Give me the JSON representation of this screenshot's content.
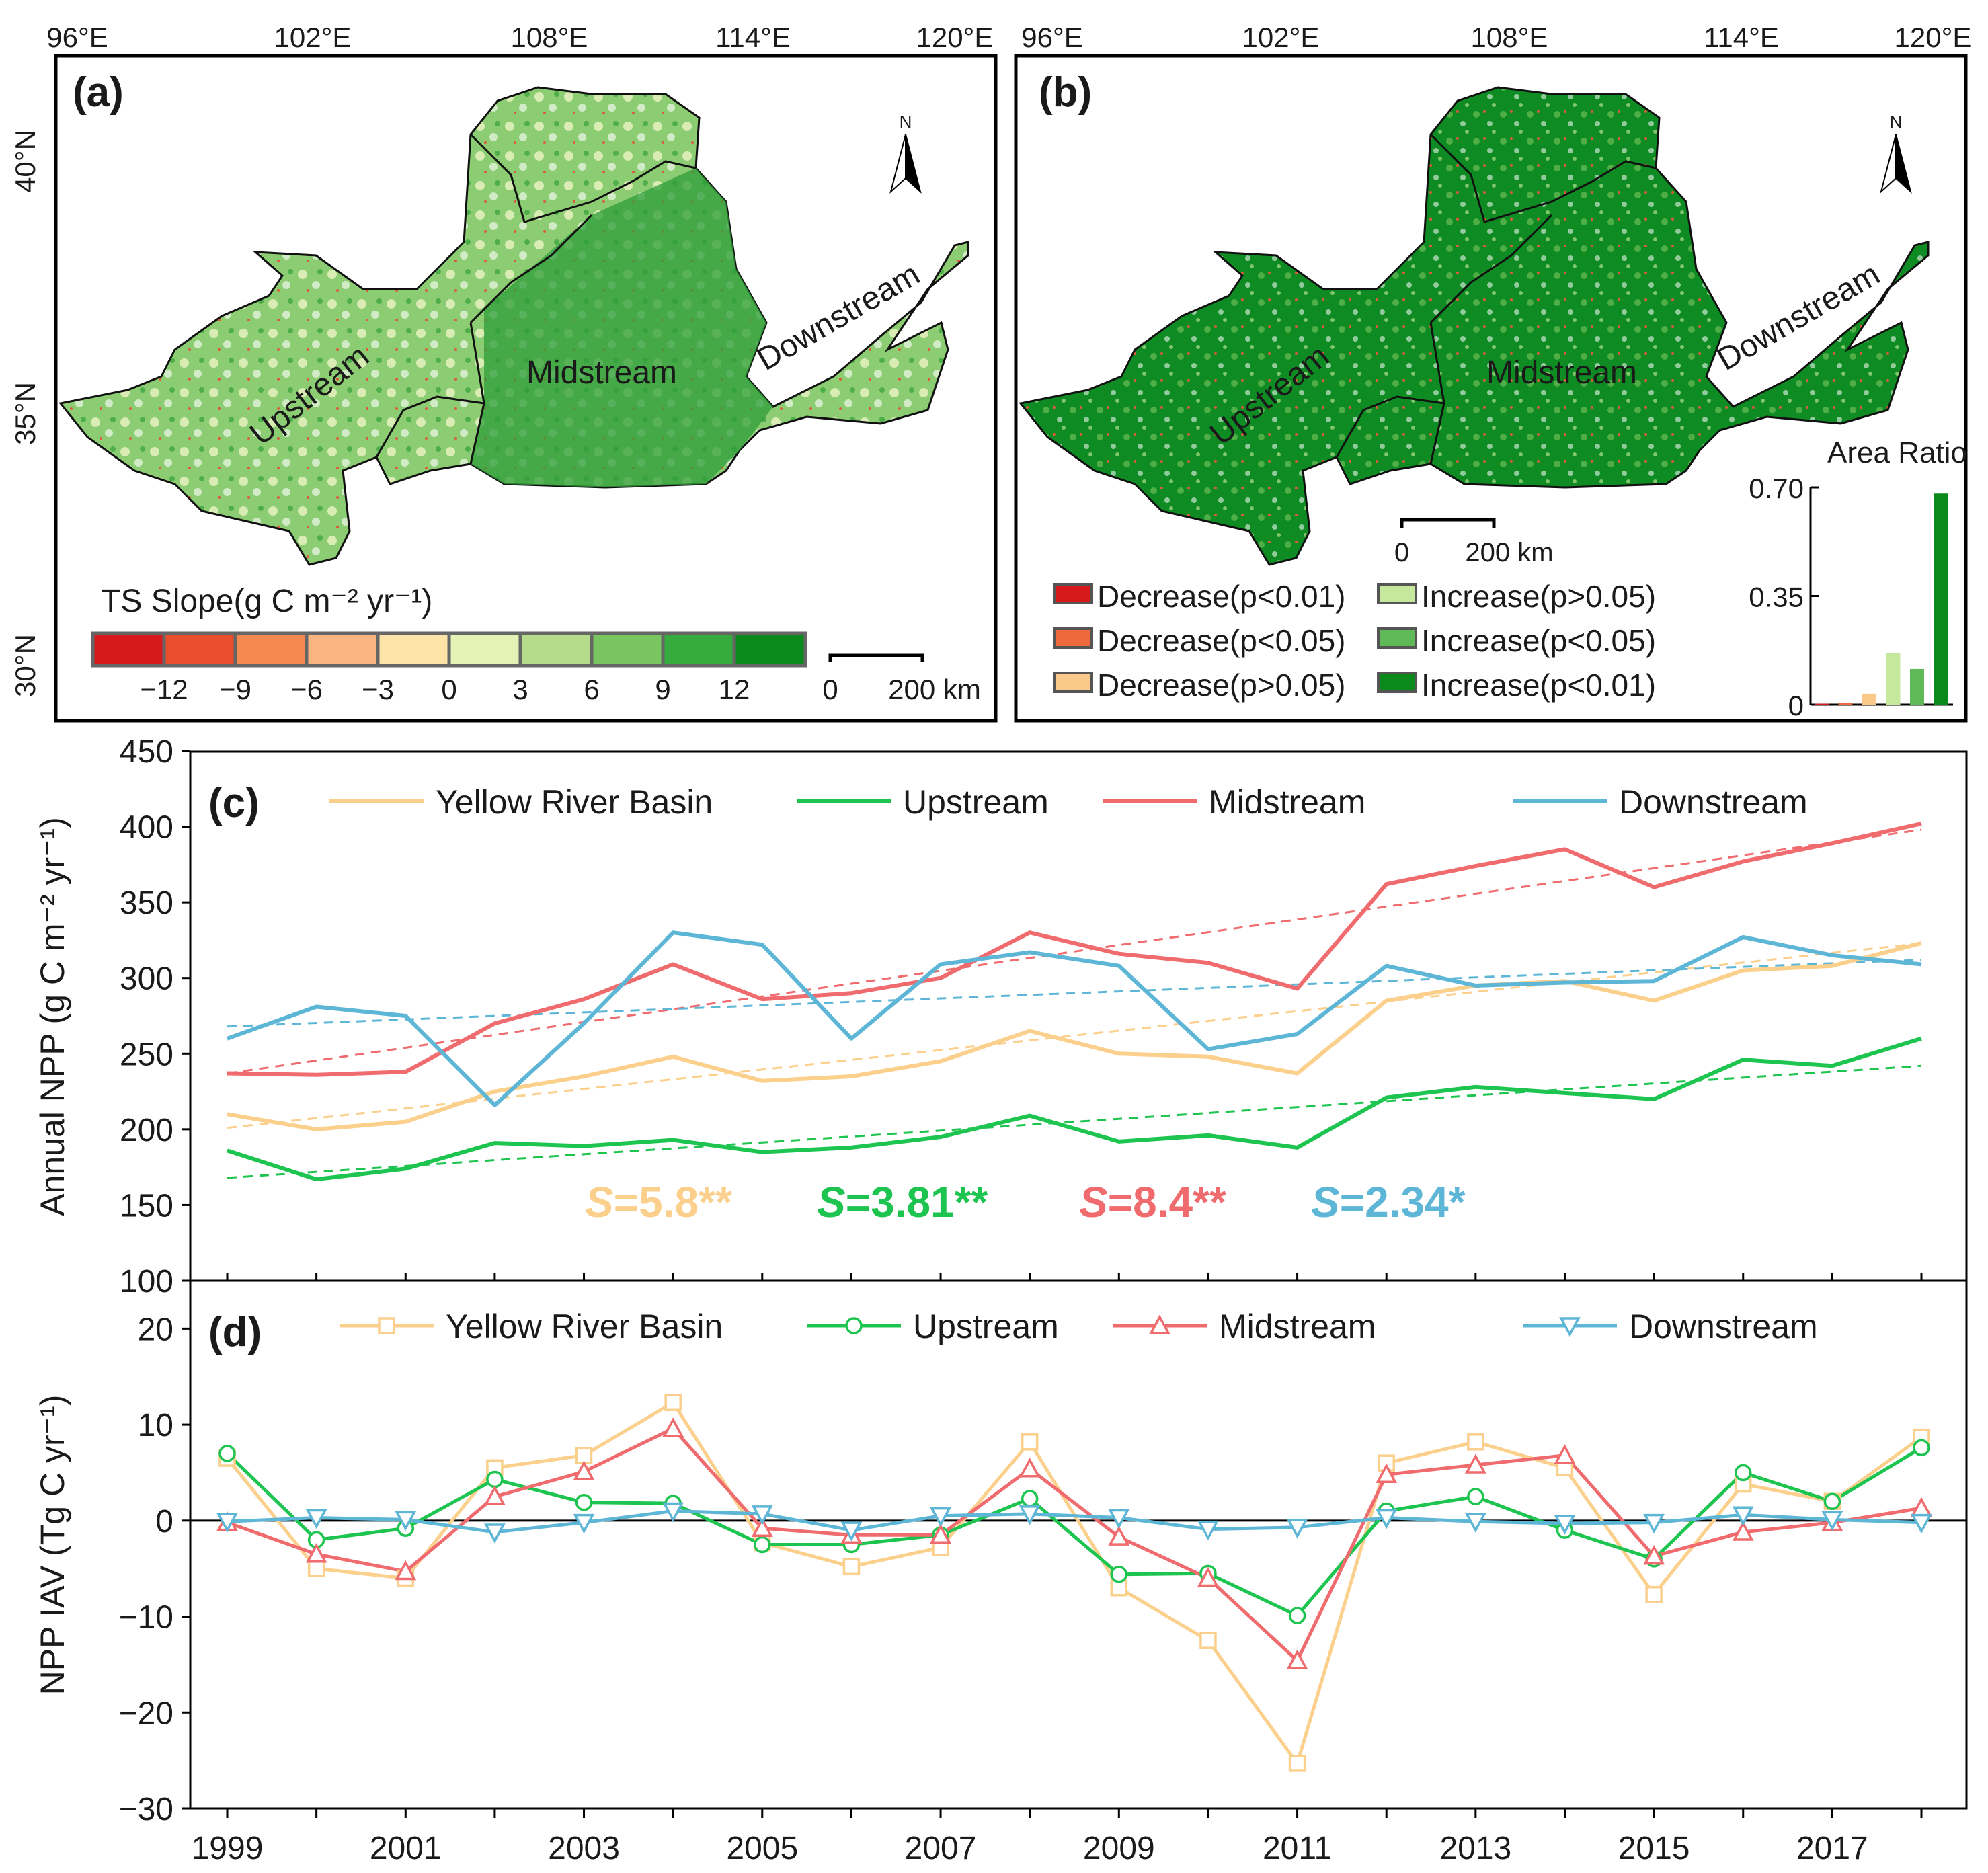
{
  "colors": {
    "basin": "#fbcf8c",
    "upstream": "#1dc44f",
    "midstream": "#ef6b6e",
    "downstream": "#5eb6d7",
    "map_green_dark": "#0b8a1c",
    "map_green_mid": "#3fa63a",
    "map_green_light": "#c8e4a6"
  },
  "map_panels": {
    "coords_top": [
      "96°E",
      "102°E",
      "108°E",
      "114°E",
      "120°E"
    ],
    "coords_left_a": [
      "40°N",
      "35°N",
      "30°N"
    ],
    "region_labels": {
      "upstream": "Upstream",
      "midstream": "Midstream",
      "downstream": "Downstream"
    },
    "north_label": "N",
    "panel_a": {
      "tag": "(a)",
      "colorbar_title": "TS Slope(g C m⁻² yr⁻¹)",
      "colorbar_colors": [
        "#d7191c",
        "#ea4e2d",
        "#f4894f",
        "#f9b482",
        "#fde3a8",
        "#e4f3b5",
        "#b4dc8a",
        "#79c560",
        "#37ac3e",
        "#0b8a1c"
      ],
      "colorbar_ticks": [
        "−12",
        "−9",
        "−6",
        "−3",
        "0",
        "3",
        "6",
        "9",
        "12"
      ],
      "scalebar_left": "0",
      "scalebar_right": "200 km"
    },
    "panel_b": {
      "tag": "(b)",
      "scalebar_left": "0",
      "scalebar_right": "200 km",
      "legend": [
        {
          "label": "Decrease(p<0.01)",
          "color": "#d7191c"
        },
        {
          "label": "Decrease(p<0.05)",
          "color": "#ee6a3c"
        },
        {
          "label": "Decrease(p>0.05)",
          "color": "#fbc989"
        },
        {
          "label": "Increase(p>0.05)",
          "color": "#c5e89c"
        },
        {
          "label": "Increase(p<0.05)",
          "color": "#5fb956"
        },
        {
          "label": "Increase(p<0.01)",
          "color": "#0b8a1c"
        }
      ]
    }
  },
  "chart_data": [
    {
      "id": "area_ratio",
      "type": "bar",
      "title": "Area Ratio",
      "categories": [
        "Decrease(p<0.01)",
        "Decrease(p<0.05)",
        "Decrease(p>0.05)",
        "Increase(p>0.05)",
        "Increase(p<0.05)",
        "Increase(p<0.01)"
      ],
      "values": [
        0.003,
        0.005,
        0.035,
        0.165,
        0.115,
        0.68
      ],
      "colors": [
        "#d7191c",
        "#ee6a3c",
        "#fbc989",
        "#c5e89c",
        "#5fb956",
        "#0b8a1c"
      ],
      "ylim": [
        0,
        0.7
      ],
      "yticks": [
        "0",
        "0.35",
        "0.70"
      ]
    },
    {
      "id": "annual_npp",
      "type": "line",
      "tag": "(c)",
      "ylabel": "Annual NPP (g C m⁻² yr⁻¹)",
      "ylim": [
        100,
        450
      ],
      "yticks": [
        100,
        150,
        200,
        250,
        300,
        350,
        400,
        450
      ],
      "x": [
        1999,
        2000,
        2001,
        2002,
        2003,
        2004,
        2005,
        2006,
        2007,
        2008,
        2009,
        2010,
        2011,
        2012,
        2013,
        2014,
        2015,
        2016,
        2017,
        2018
      ],
      "series": [
        {
          "name": "Yellow River Basin",
          "key": "basin",
          "values": [
            210,
            200,
            205,
            225,
            235,
            248,
            232,
            235,
            245,
            265,
            250,
            248,
            237,
            285,
            295,
            298,
            285,
            305,
            308,
            323
          ],
          "trend": [
            201,
            323
          ]
        },
        {
          "name": "Upstream",
          "key": "upstream",
          "values": [
            186,
            167,
            174,
            191,
            189,
            193,
            185,
            188,
            195,
            209,
            192,
            196,
            188,
            221,
            228,
            224,
            220,
            246,
            242,
            260
          ],
          "trend": [
            168,
            242
          ]
        },
        {
          "name": "Midstream",
          "key": "midstream",
          "values": [
            237,
            236,
            238,
            270,
            286,
            309,
            286,
            290,
            300,
            330,
            316,
            310,
            293,
            362,
            374,
            385,
            360,
            377,
            389,
            402
          ],
          "trend": [
            237,
            398
          ]
        },
        {
          "name": "Downstream",
          "key": "downstream",
          "values": [
            260,
            281,
            275,
            216,
            270,
            330,
            322,
            260,
            309,
            317,
            308,
            253,
            263,
            308,
            295,
            297,
            298,
            327,
            315,
            309
          ],
          "trend": [
            268,
            312
          ]
        }
      ],
      "annotations": [
        {
          "prefix": "S",
          "text": "=5.8**",
          "key": "basin"
        },
        {
          "prefix": "S",
          "text": "=3.81**",
          "key": "upstream"
        },
        {
          "prefix": "S",
          "text": "=8.4**",
          "key": "midstream"
        },
        {
          "prefix": "S",
          "text": "=2.34*",
          "key": "downstream"
        }
      ]
    },
    {
      "id": "npp_iav",
      "type": "line",
      "tag": "(d)",
      "ylabel": "NPP IAV (Tg C yr⁻¹)",
      "xlabel": "",
      "ylim": [
        -30,
        25
      ],
      "yticks": [
        -30,
        -20,
        -10,
        0,
        10,
        20
      ],
      "ytick_labels": [
        "−30",
        "−20",
        "−10",
        "0",
        "10",
        "20"
      ],
      "x": [
        1999,
        2000,
        2001,
        2002,
        2003,
        2004,
        2005,
        2006,
        2007,
        2008,
        2009,
        2010,
        2011,
        2012,
        2013,
        2014,
        2015,
        2016,
        2017,
        2018
      ],
      "xticks": [
        "1999",
        "2001",
        "2003",
        "2005",
        "2007",
        "2009",
        "2011",
        "2013",
        "2015",
        "2017"
      ],
      "series": [
        {
          "name": "Yellow River Basin",
          "key": "basin",
          "marker": "square",
          "values": [
            6.5,
            -5.0,
            -6.0,
            5.5,
            6.8,
            12.3,
            -2.3,
            -4.8,
            -2.8,
            8.2,
            -7.0,
            -12.5,
            -25.3,
            6.0,
            8.2,
            5.5,
            -7.7,
            3.8,
            2.0,
            8.7
          ]
        },
        {
          "name": "Upstream",
          "key": "upstream",
          "marker": "circle",
          "values": [
            7.0,
            -2.0,
            -0.8,
            4.3,
            1.9,
            1.8,
            -2.5,
            -2.5,
            -1.5,
            2.3,
            -5.6,
            -5.5,
            -9.9,
            1.0,
            2.5,
            -1.0,
            -4.0,
            5.0,
            2.0,
            7.6
          ]
        },
        {
          "name": "Midstream",
          "key": "midstream",
          "marker": "triangle-up",
          "values": [
            -0.2,
            -3.5,
            -5.3,
            2.5,
            5.1,
            9.6,
            -0.8,
            -1.5,
            -1.5,
            5.4,
            -1.7,
            -6.0,
            -14.6,
            4.8,
            5.8,
            6.8,
            -3.7,
            -1.2,
            -0.2,
            1.3
          ]
        },
        {
          "name": "Downstream",
          "key": "downstream",
          "marker": "triangle-down",
          "values": [
            -0.1,
            0.3,
            0.1,
            -1.2,
            -0.2,
            1.0,
            0.7,
            -1.0,
            0.5,
            0.7,
            0.3,
            -0.9,
            -0.7,
            0.3,
            -0.1,
            -0.3,
            -0.2,
            0.6,
            0.1,
            -0.2
          ]
        }
      ]
    }
  ]
}
